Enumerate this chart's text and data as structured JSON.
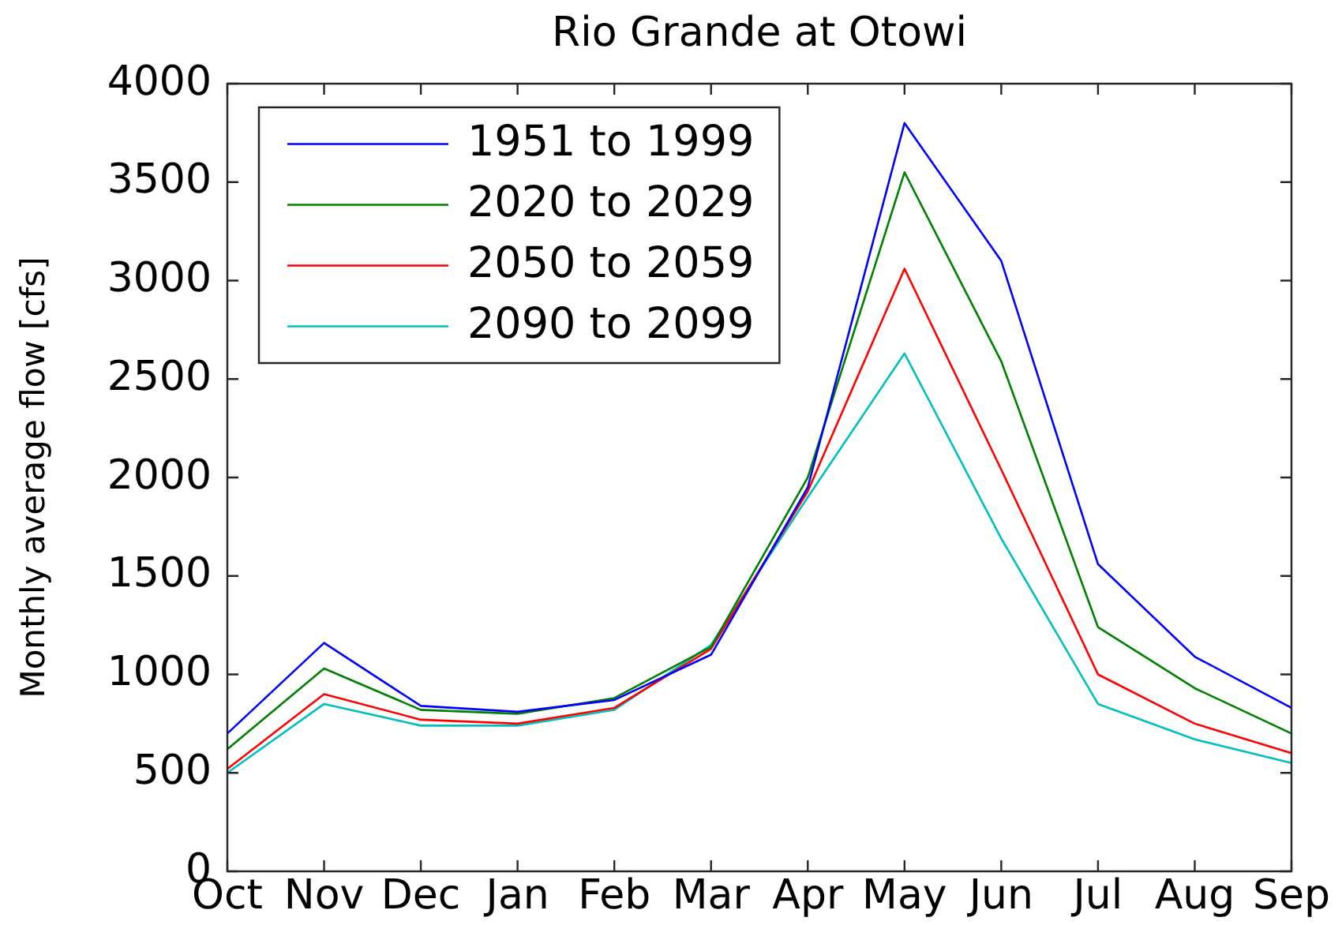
{
  "chart_data": {
    "type": "line",
    "title": "Rio Grande at Otowi",
    "ylabel": "Monthly average flow [cfs]",
    "categories": [
      "Oct",
      "Nov",
      "Dec",
      "Jan",
      "Feb",
      "Mar",
      "Apr",
      "May",
      "Jun",
      "Jul",
      "Aug",
      "Sep"
    ],
    "series": [
      {
        "name": "1951 to 1999",
        "color": "#0000ff",
        "values": [
          700,
          1160,
          840,
          810,
          870,
          1100,
          1950,
          3800,
          3100,
          1560,
          1090,
          830
        ]
      },
      {
        "name": "2020 to 2029",
        "color": "#008000",
        "values": [
          620,
          1030,
          820,
          800,
          880,
          1140,
          2000,
          3550,
          2590,
          1240,
          930,
          700
        ]
      },
      {
        "name": "2050 to 2059",
        "color": "#ff0000",
        "values": [
          520,
          900,
          770,
          750,
          830,
          1130,
          1930,
          3060,
          2040,
          1000,
          750,
          600
        ]
      },
      {
        "name": "2090 to 2099",
        "color": "#00bfbf",
        "values": [
          500,
          850,
          740,
          740,
          820,
          1150,
          1900,
          2630,
          1690,
          850,
          670,
          550
        ]
      }
    ],
    "ylim": [
      0,
      4000
    ],
    "yticks": [
      0,
      500,
      1000,
      1500,
      2000,
      2500,
      3000,
      3500,
      4000
    ],
    "grid": false,
    "legend": "top left",
    "marker": "none",
    "line_style": "solid"
  }
}
